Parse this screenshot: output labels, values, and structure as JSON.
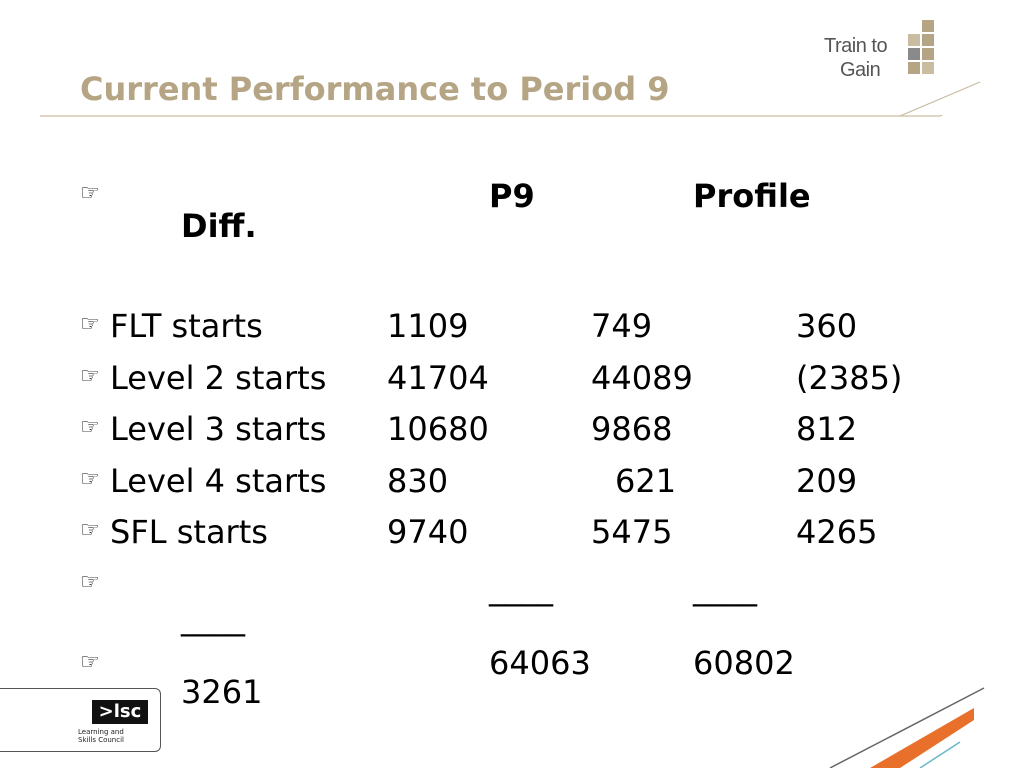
{
  "slide": {
    "title": "Current Performance to Period 9",
    "bullet_glyph": "☞"
  },
  "logo": {
    "line1": "Train to",
    "line2": "Gain"
  },
  "table": {
    "headers": {
      "p9": "P9",
      "profile": "Profile",
      "diff": "Diff."
    },
    "rows": [
      {
        "label": "FLT starts",
        "p9": "1109",
        "profile": "749",
        "diff": "360"
      },
      {
        "label": "Level 2 starts",
        "p9": "41704",
        "profile": "44089",
        "diff": "(2385)"
      },
      {
        "label": "Level 3 starts",
        "p9": "10680",
        "profile": "9868",
        "diff": "812"
      },
      {
        "label": "Level 4 starts",
        "p9": "830",
        "profile": "621",
        "diff": "209"
      },
      {
        "label": "SFL starts",
        "p9": "9740",
        "profile": "5475",
        "diff": "4265"
      }
    ],
    "separator": "____",
    "totals": {
      "p9": "64063",
      "profile": "60802",
      "diff": "3261"
    }
  },
  "footer_logo": {
    "mark": ">lsc",
    "line1": "Learning and",
    "line2": "Skills Council"
  },
  "colors": {
    "title": "#b5a584",
    "accent_orange": "#e8702a",
    "accent_teal": "#6ab7c8"
  }
}
